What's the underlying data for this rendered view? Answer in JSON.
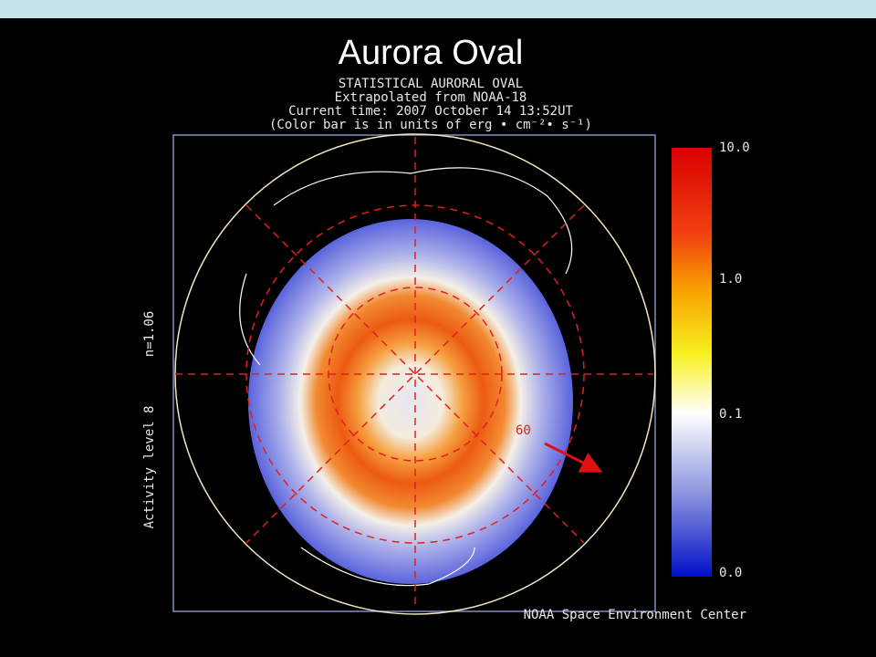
{
  "title": "Aurora Oval",
  "figure": {
    "header": [
      "STATISTICAL AURORAL OVAL",
      "Extrapolated from NOAA-18",
      "Current time: 2007 October 14 13:52UT",
      "(Color bar is in units of erg • cm⁻²• s⁻¹)"
    ],
    "colorbar_labels": [
      "10.0",
      "1.0",
      "0.1",
      "0.0"
    ],
    "latitude_label": "60",
    "side_labels": [
      "n=1.06",
      "Activity level 8"
    ],
    "credit": "NOAA Space Environment Center"
  }
}
